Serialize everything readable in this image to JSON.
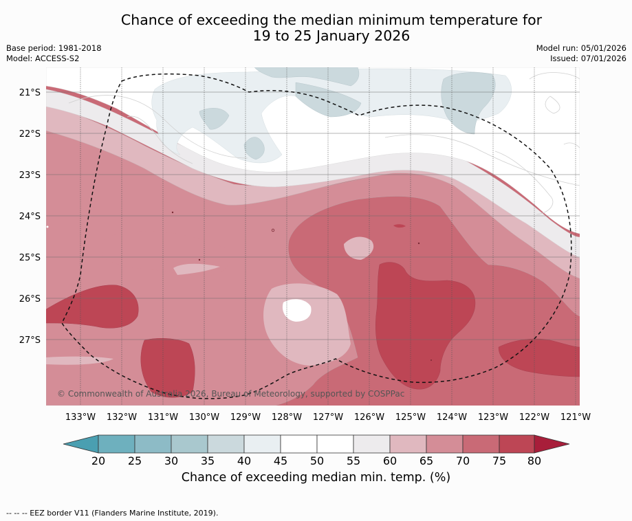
{
  "title": {
    "line1": "Chance of exceeding the median minimum temperature for",
    "line2": "19 to 25 January 2026"
  },
  "meta": {
    "base_period": "Base period: 1981-2018",
    "model": "Model: ACCESS-S2",
    "model_run": "Model run: 05/01/2026",
    "issued": "Issued: 07/01/2026"
  },
  "map": {
    "lat_labels": [
      "21°S",
      "22°S",
      "23°S",
      "24°S",
      "25°S",
      "26°S",
      "27°S"
    ],
    "lon_labels": [
      "133°W",
      "132°W",
      "131°W",
      "130°W",
      "129°W",
      "128°W",
      "127°W",
      "126°W",
      "125°W",
      "124°W",
      "123°W",
      "122°W",
      "121°W"
    ],
    "copyright": "© Commonwealth of Australia 2026, Bureau of Meteorology, supported by COSPPac"
  },
  "colorbar": {
    "ticks": [
      "20",
      "25",
      "30",
      "35",
      "40",
      "45",
      "50",
      "55",
      "60",
      "65",
      "70",
      "75",
      "80"
    ],
    "title": "Chance of exceeding median min. temp. (%)",
    "colors": {
      "below20": "#4a9fb1",
      "c20_25": "#6eb0be",
      "c25_30": "#8dbbc6",
      "c30_35": "#a9c8ce",
      "c35_40": "#cbd9dd",
      "c40_45": "#e9eff2",
      "c45_50": "#ffffff",
      "c50_55": "#ffffff",
      "c55_60": "#edebed",
      "c60_65": "#e0b8bf",
      "c65_70": "#d48d97",
      "c70_75": "#c96a76",
      "c75_80": "#bd4655",
      "above80": "#a81e3a"
    }
  },
  "footer": {
    "legend": "--  --  -- EEZ border V11 (Flanders Marine Institute, 2019)."
  }
}
